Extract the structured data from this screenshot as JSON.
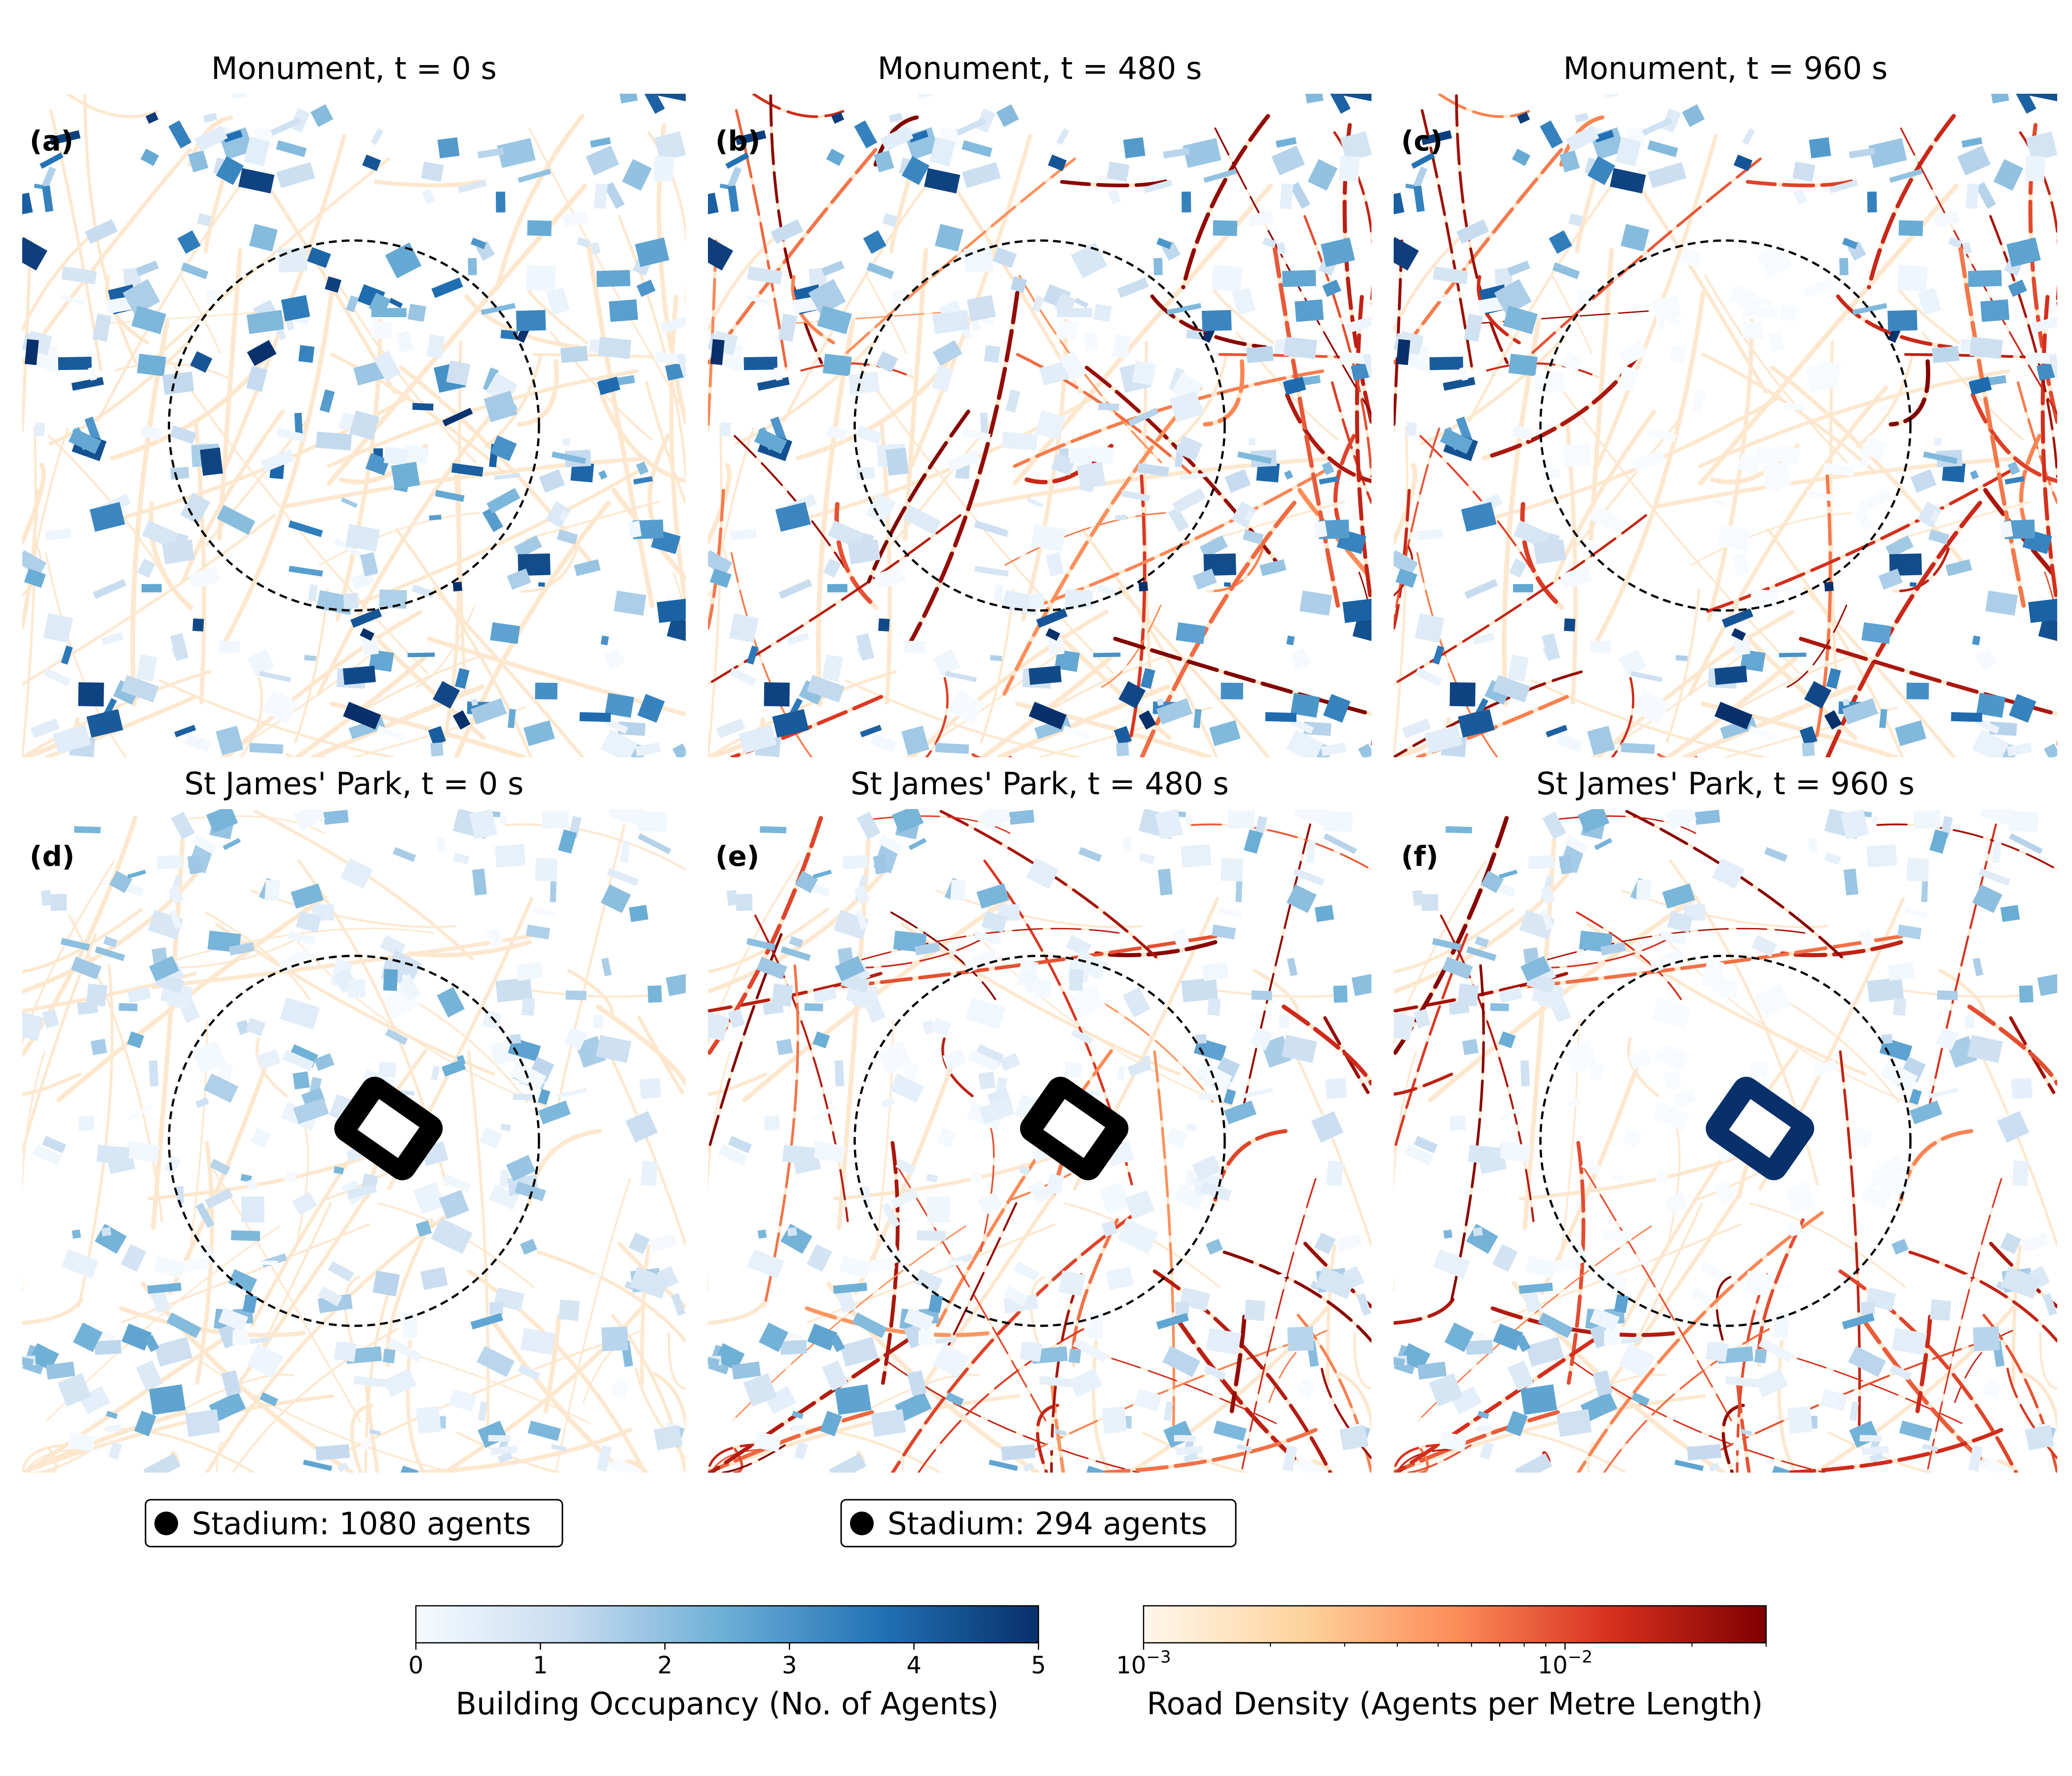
{
  "figure": {
    "panels": [
      {
        "tag": "(a)",
        "title": "Monument, t = 0 s",
        "site": "monument",
        "phase": 0
      },
      {
        "tag": "(b)",
        "title": "Monument, t = 480 s",
        "site": "monument",
        "phase": 1
      },
      {
        "tag": "(c)",
        "title": "Monument, t = 960 s",
        "site": "monument",
        "phase": 2
      },
      {
        "tag": "(d)",
        "title": "St James' Park, t = 0 s",
        "site": "stjames",
        "phase": 0
      },
      {
        "tag": "(e)",
        "title": "St James' Park, t = 480 s",
        "site": "stjames",
        "phase": 1
      },
      {
        "tag": "(f)",
        "title": "St James' Park, t = 960 s",
        "site": "stjames",
        "phase": 2
      }
    ],
    "stadium_notes": [
      {
        "label": "Stadium: 1080 agents",
        "marker_color": "#000000"
      },
      {
        "label": "Stadium: 294 agents",
        "marker_color": "#000000"
      }
    ],
    "colorbars": [
      {
        "id": "building",
        "label": "Building Occupancy (No. of Agents)",
        "scale": "linear",
        "range": [
          0,
          5
        ],
        "ticks": [
          "0",
          "1",
          "2",
          "3",
          "4",
          "5"
        ],
        "colormap": "Blues",
        "stops": [
          "#f7fbff",
          "#c6dbef",
          "#6baed6",
          "#2171b5",
          "#08306b"
        ]
      },
      {
        "id": "road",
        "label": "Road Density (Agents per Metre Length)",
        "scale": "log",
        "range": [
          0.001,
          0.03
        ],
        "ticks": [
          {
            "value": 0.001,
            "label": "10",
            "exp": "−3"
          },
          {
            "value": 0.01,
            "label": "10",
            "exp": "−2"
          }
        ],
        "colormap": "OrRd",
        "stops": [
          "#fff7ec",
          "#fdd49e",
          "#fc8d59",
          "#d7301f",
          "#7f0000"
        ]
      }
    ],
    "colors": {
      "road_base": "#fde8cf",
      "evac_boundary": "#000000",
      "stadium_fill": "#000000",
      "stadium_fill_late": "#08306b"
    }
  },
  "chart_data": [
    {
      "type": "heatmap",
      "title": "Monument, t = 0 s",
      "encoding": "map of building occupancy and road density",
      "evacuation_boundary": "dashed circle",
      "road_density": "background level",
      "building_occupancy": "high inside circle"
    },
    {
      "type": "heatmap",
      "title": "Monument, t = 480 s",
      "road_density": "high on roads crossing the circle",
      "building_occupancy": "low inside circle, unchanged outside"
    },
    {
      "type": "heatmap",
      "title": "Monument, t = 960 s",
      "road_density": "high on roads outside the circle",
      "building_occupancy": "zero inside circle"
    },
    {
      "type": "heatmap",
      "title": "St James' Park, t = 0 s",
      "stadium_agents": 1080
    },
    {
      "type": "heatmap",
      "title": "St James' Park, t = 480 s",
      "stadium_agents": 294
    },
    {
      "type": "heatmap",
      "title": "St James' Park, t = 960 s",
      "stadium_agents": "within colour range"
    }
  ]
}
